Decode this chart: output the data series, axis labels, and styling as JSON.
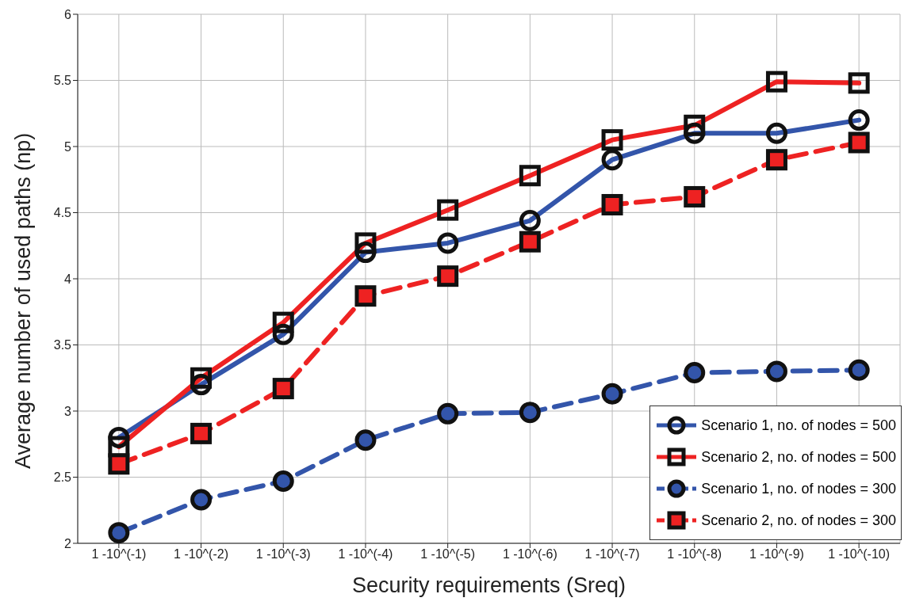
{
  "chart_data": {
    "type": "line",
    "xlabel": "Security requirements (Sreq)",
    "ylabel": "Average number of used paths (np)",
    "categories": [
      "1 -10^(-1)",
      "1 -10^(-2)",
      "1 -10^(-3)",
      "1 -10^(-4)",
      "1 -10^(-5)",
      "1 -10^(-6)",
      "1 -10^(-7)",
      "1 -10^(-8)",
      "1 -10^(-9)",
      "1 -10^(-10)"
    ],
    "series": [
      {
        "name": "Scenario 1, no. of nodes = 500",
        "color": "#3355aa",
        "marker": "circle",
        "line_style": "solid",
        "values": [
          2.8,
          3.2,
          3.58,
          4.2,
          4.27,
          4.44,
          4.9,
          5.1,
          5.1,
          5.2
        ]
      },
      {
        "name": "Scenario 2, no. of nodes = 500",
        "color": "#ee2222",
        "marker": "square",
        "line_style": "solid",
        "values": [
          2.73,
          3.25,
          3.67,
          4.27,
          4.52,
          4.78,
          5.05,
          5.16,
          5.49,
          5.48
        ]
      },
      {
        "name": "Scenario 1, no. of nodes = 300",
        "color": "#3355aa",
        "marker": "circle",
        "line_style": "dashed",
        "values": [
          2.08,
          2.33,
          2.47,
          2.78,
          2.98,
          2.99,
          3.13,
          3.29,
          3.3,
          3.31
        ]
      },
      {
        "name": "Scenario 2, no. of nodes = 300",
        "color": "#ee2222",
        "marker": "square",
        "line_style": "dashed",
        "values": [
          2.6,
          2.83,
          3.17,
          3.87,
          4.02,
          4.28,
          4.56,
          4.62,
          4.9,
          5.03
        ]
      }
    ],
    "ylim": [
      2,
      6
    ],
    "yticks": [
      2,
      2.5,
      3,
      3.5,
      4,
      4.5,
      5,
      5.5,
      6
    ],
    "grid": true,
    "legend": "bottom right"
  }
}
